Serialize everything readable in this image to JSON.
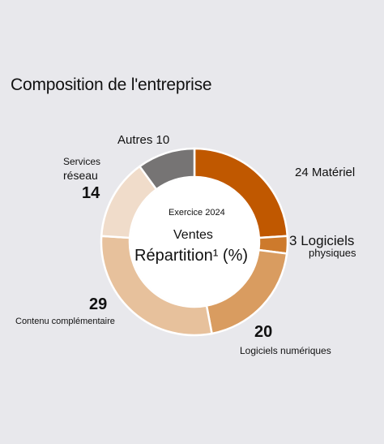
{
  "chart_data": {
    "type": "pie",
    "donut": true,
    "title": "Composition de l'entreprise",
    "center": {
      "subtitle": "Exercice 2024",
      "line1": "Ventes",
      "line2": "Répartition¹ (%)"
    },
    "slices": [
      {
        "label": "Matériel",
        "value": 24,
        "color": "#c05800"
      },
      {
        "label": "Logiciels physiques",
        "label_line1": "Logiciels",
        "label_line2": "physiques",
        "value": 3,
        "color": "#cd7a2c"
      },
      {
        "label": "Logiciels numériques",
        "value": 20,
        "color": "#d99c60"
      },
      {
        "label": "Contenu complémentaire",
        "value": 29,
        "color": "#e7c19c"
      },
      {
        "label": "Services réseau",
        "label_line1": "Services",
        "label_line2": "réseau",
        "value": 14,
        "color": "#f0dcca"
      },
      {
        "label": "Autres",
        "value": 10,
        "color": "#767474"
      }
    ]
  }
}
